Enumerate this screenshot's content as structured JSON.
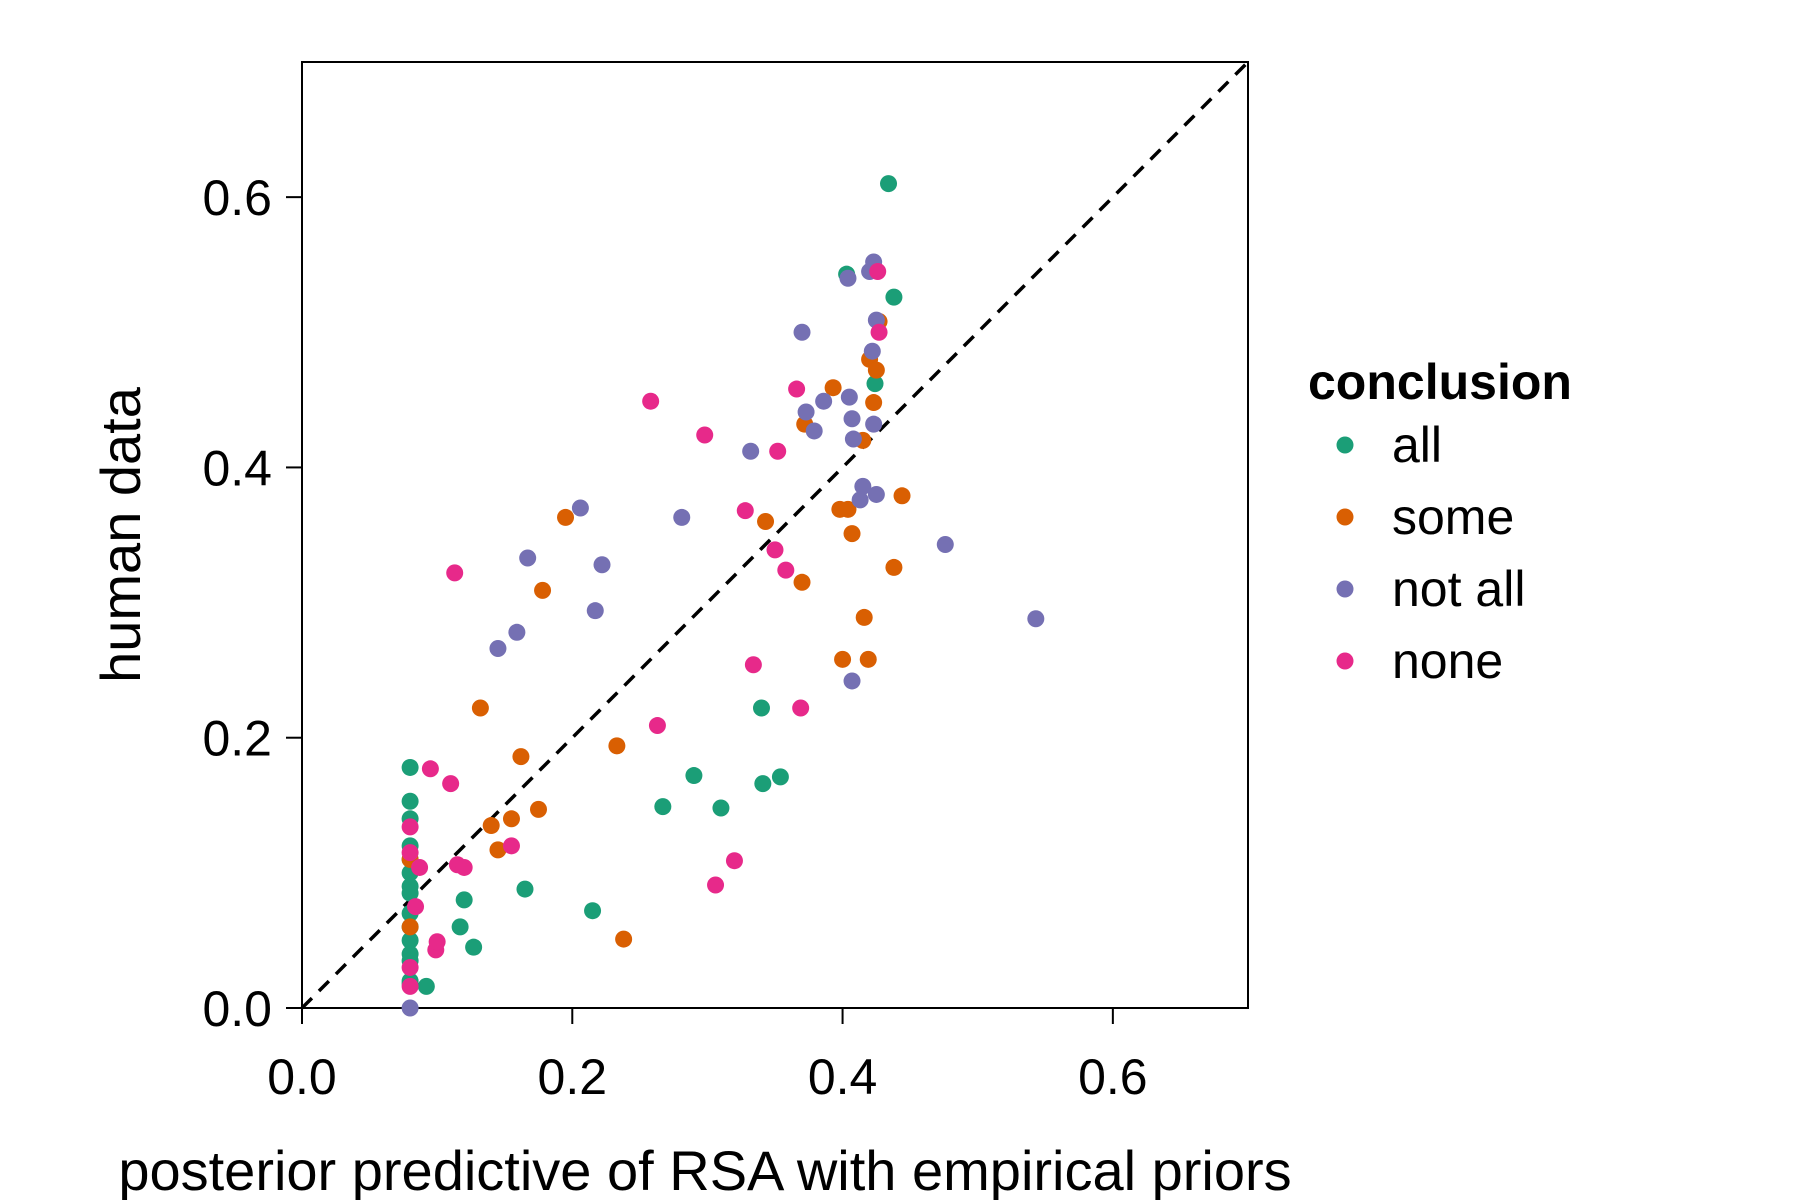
{
  "chart_data": {
    "type": "scatter",
    "xlabel": "posterior predictive of RSA with empirical priors",
    "ylabel": "human data",
    "xlim": [
      0,
      0.7
    ],
    "ylim": [
      0,
      0.7
    ],
    "x_ticks": [
      "0.0",
      "0.2",
      "0.4",
      "0.6"
    ],
    "y_ticks": [
      "0.0",
      "0.2",
      "0.4",
      "0.6"
    ],
    "reference_line": "y = x (dashed)",
    "grid": false,
    "legend": {
      "title": "conclusion",
      "placement": "right"
    },
    "series": [
      {
        "name": "all",
        "color": "#1b9e77",
        "points": [
          [
            0.08,
            0.178
          ],
          [
            0.08,
            0.153
          ],
          [
            0.08,
            0.14
          ],
          [
            0.08,
            0.12
          ],
          [
            0.08,
            0.11
          ],
          [
            0.08,
            0.1
          ],
          [
            0.08,
            0.09
          ],
          [
            0.08,
            0.085
          ],
          [
            0.08,
            0.07
          ],
          [
            0.08,
            0.06
          ],
          [
            0.08,
            0.05
          ],
          [
            0.08,
            0.04
          ],
          [
            0.08,
            0.035
          ],
          [
            0.08,
            0.02
          ],
          [
            0.08,
            0.018
          ],
          [
            0.092,
            0.016
          ],
          [
            0.117,
            0.06
          ],
          [
            0.12,
            0.08
          ],
          [
            0.127,
            0.045
          ],
          [
            0.165,
            0.088
          ],
          [
            0.215,
            0.072
          ],
          [
            0.267,
            0.149
          ],
          [
            0.29,
            0.172
          ],
          [
            0.31,
            0.148
          ],
          [
            0.34,
            0.222
          ],
          [
            0.341,
            0.166
          ],
          [
            0.354,
            0.171
          ],
          [
            0.403,
            0.543
          ],
          [
            0.424,
            0.462
          ],
          [
            0.434,
            0.61
          ],
          [
            0.438,
            0.526
          ]
        ]
      },
      {
        "name": "some",
        "color": "#d95f02",
        "points": [
          [
            0.08,
            0.11
          ],
          [
            0.08,
            0.06
          ],
          [
            0.132,
            0.222
          ],
          [
            0.14,
            0.135
          ],
          [
            0.145,
            0.117
          ],
          [
            0.155,
            0.14
          ],
          [
            0.162,
            0.186
          ],
          [
            0.175,
            0.147
          ],
          [
            0.178,
            0.309
          ],
          [
            0.195,
            0.363
          ],
          [
            0.233,
            0.194
          ],
          [
            0.238,
            0.051
          ],
          [
            0.343,
            0.36
          ],
          [
            0.37,
            0.315
          ],
          [
            0.372,
            0.432
          ],
          [
            0.393,
            0.459
          ],
          [
            0.398,
            0.369
          ],
          [
            0.4,
            0.258
          ],
          [
            0.404,
            0.369
          ],
          [
            0.407,
            0.351
          ],
          [
            0.415,
            0.42
          ],
          [
            0.416,
            0.289
          ],
          [
            0.419,
            0.258
          ],
          [
            0.42,
            0.48
          ],
          [
            0.423,
            0.448
          ],
          [
            0.425,
            0.472
          ],
          [
            0.427,
            0.508
          ],
          [
            0.438,
            0.326
          ],
          [
            0.444,
            0.379
          ]
        ]
      },
      {
        "name": "not all",
        "color": "#7570b3",
        "points": [
          [
            0.08,
            0.0
          ],
          [
            0.145,
            0.266
          ],
          [
            0.159,
            0.278
          ],
          [
            0.167,
            0.333
          ],
          [
            0.206,
            0.37
          ],
          [
            0.217,
            0.294
          ],
          [
            0.222,
            0.328
          ],
          [
            0.281,
            0.363
          ],
          [
            0.332,
            0.412
          ],
          [
            0.37,
            0.5
          ],
          [
            0.373,
            0.441
          ],
          [
            0.379,
            0.427
          ],
          [
            0.386,
            0.449
          ],
          [
            0.404,
            0.54
          ],
          [
            0.405,
            0.452
          ],
          [
            0.407,
            0.242
          ],
          [
            0.407,
            0.436
          ],
          [
            0.408,
            0.421
          ],
          [
            0.413,
            0.376
          ],
          [
            0.415,
            0.386
          ],
          [
            0.42,
            0.545
          ],
          [
            0.422,
            0.486
          ],
          [
            0.423,
            0.432
          ],
          [
            0.423,
            0.552
          ],
          [
            0.425,
            0.509
          ],
          [
            0.425,
            0.38
          ],
          [
            0.476,
            0.343
          ],
          [
            0.543,
            0.288
          ]
        ]
      },
      {
        "name": "none",
        "color": "#e7298a",
        "points": [
          [
            0.08,
            0.134
          ],
          [
            0.08,
            0.115
          ],
          [
            0.08,
            0.03
          ],
          [
            0.08,
            0.016
          ],
          [
            0.084,
            0.075
          ],
          [
            0.087,
            0.104
          ],
          [
            0.095,
            0.177
          ],
          [
            0.099,
            0.043
          ],
          [
            0.1,
            0.049
          ],
          [
            0.11,
            0.166
          ],
          [
            0.113,
            0.322
          ],
          [
            0.115,
            0.106
          ],
          [
            0.12,
            0.104
          ],
          [
            0.155,
            0.12
          ],
          [
            0.258,
            0.449
          ],
          [
            0.263,
            0.209
          ],
          [
            0.298,
            0.424
          ],
          [
            0.306,
            0.091
          ],
          [
            0.32,
            0.109
          ],
          [
            0.328,
            0.368
          ],
          [
            0.334,
            0.254
          ],
          [
            0.35,
            0.339
          ],
          [
            0.352,
            0.412
          ],
          [
            0.358,
            0.324
          ],
          [
            0.366,
            0.458
          ],
          [
            0.369,
            0.222
          ],
          [
            0.426,
            0.545
          ],
          [
            0.427,
            0.5
          ]
        ]
      }
    ]
  }
}
